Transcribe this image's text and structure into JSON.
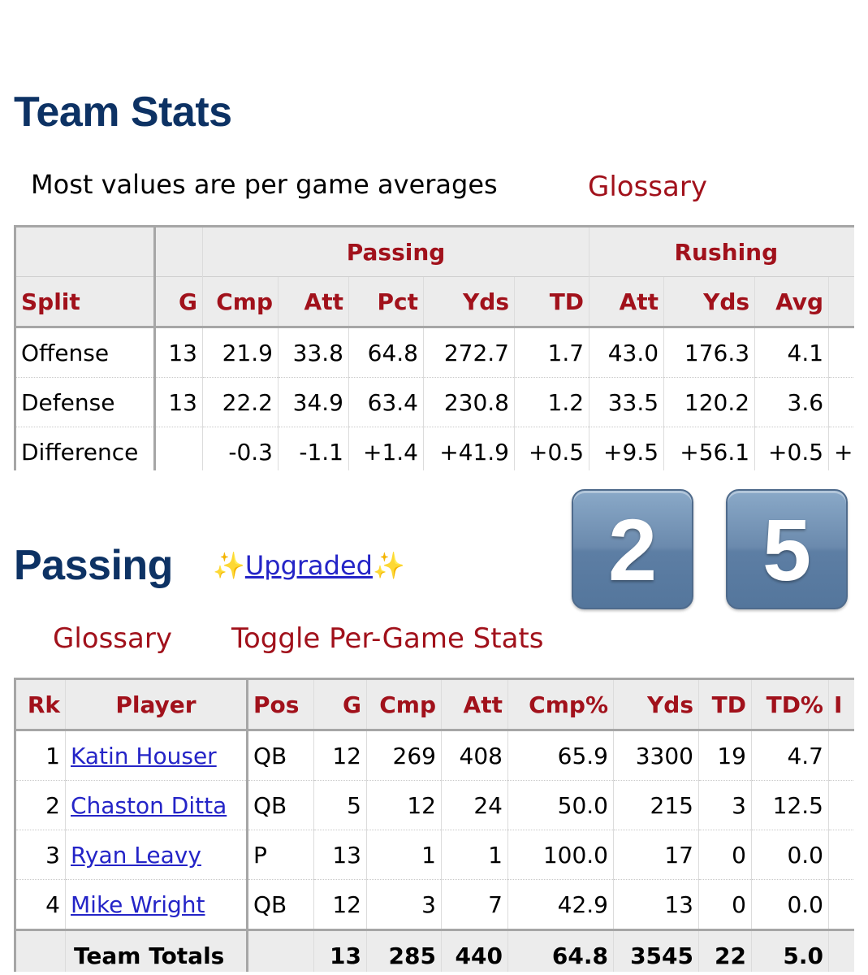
{
  "team_stats": {
    "title": "Team Stats",
    "note": "Most values are per game averages",
    "glossary": "Glossary",
    "groups": [
      "Passing",
      "Rushing"
    ],
    "columns": [
      "Split",
      "G",
      "Cmp",
      "Att",
      "Pct",
      "Yds",
      "TD",
      "Att",
      "Yds",
      "Avg"
    ],
    "rows": [
      {
        "split": "Offense",
        "cells": [
          "13",
          "21.9",
          "33.8",
          "64.8",
          "272.7",
          "1.7",
          "43.0",
          "176.3",
          "4.1",
          ""
        ]
      },
      {
        "split": "Defense",
        "cells": [
          "13",
          "22.2",
          "34.9",
          "63.4",
          "230.8",
          "1.2",
          "33.5",
          "120.2",
          "3.6",
          ""
        ]
      },
      {
        "split": "Difference",
        "cells": [
          "",
          "-0.3",
          "-1.1",
          "+1.4",
          "+41.9",
          "+0.5",
          "+9.5",
          "+56.1",
          "+0.5",
          "+"
        ]
      }
    ]
  },
  "passing": {
    "title": "Passing",
    "sparkle": "✨",
    "upgraded": "Upgraded",
    "glossary": "Glossary",
    "toggle": "Toggle Per-Game Stats",
    "columns": [
      "Rk",
      "Player",
      "Pos",
      "G",
      "Cmp",
      "Att",
      "Cmp%",
      "Yds",
      "TD",
      "TD%",
      "I"
    ],
    "rows": [
      {
        "rk": "1",
        "player": "Katin Houser",
        "pos": "QB",
        "cells": [
          "12",
          "269",
          "408",
          "65.9",
          "3300",
          "19",
          "4.7",
          ""
        ]
      },
      {
        "rk": "2",
        "player": "Chaston Ditta",
        "pos": "QB",
        "cells": [
          "5",
          "12",
          "24",
          "50.0",
          "215",
          "3",
          "12.5",
          ""
        ]
      },
      {
        "rk": "3",
        "player": "Ryan Leavy",
        "pos": "P",
        "cells": [
          "13",
          "1",
          "1",
          "100.0",
          "17",
          "0",
          "0.0",
          ""
        ]
      },
      {
        "rk": "4",
        "player": "Mike Wright",
        "pos": "QB",
        "cells": [
          "12",
          "3",
          "7",
          "42.9",
          "13",
          "0",
          "0.0",
          ""
        ]
      }
    ],
    "totals": {
      "label": "Team Totals",
      "pos": "",
      "cells": [
        "13",
        "285",
        "440",
        "64.8",
        "3545",
        "22",
        "5.0",
        ""
      ]
    }
  },
  "tiles": [
    "2",
    "5"
  ]
}
